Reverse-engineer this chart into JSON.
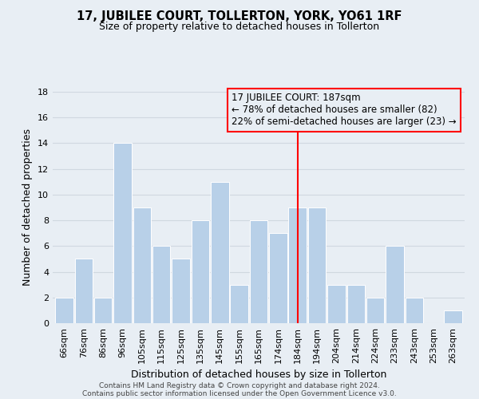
{
  "title": "17, JUBILEE COURT, TOLLERTON, YORK, YO61 1RF",
  "subtitle": "Size of property relative to detached houses in Tollerton",
  "xlabel": "Distribution of detached houses by size in Tollerton",
  "ylabel": "Number of detached properties",
  "footer_lines": [
    "Contains HM Land Registry data © Crown copyright and database right 2024.",
    "Contains public sector information licensed under the Open Government Licence v3.0."
  ],
  "bins": [
    "66sqm",
    "76sqm",
    "86sqm",
    "96sqm",
    "105sqm",
    "115sqm",
    "125sqm",
    "135sqm",
    "145sqm",
    "155sqm",
    "165sqm",
    "174sqm",
    "184sqm",
    "194sqm",
    "204sqm",
    "214sqm",
    "224sqm",
    "233sqm",
    "243sqm",
    "253sqm",
    "263sqm"
  ],
  "values": [
    2,
    5,
    2,
    14,
    9,
    6,
    5,
    8,
    11,
    3,
    8,
    7,
    9,
    9,
    3,
    3,
    2,
    6,
    2,
    0,
    1
  ],
  "bar_color": "#b8d0e8",
  "bar_edge_color": "#ffffff",
  "grid_color": "#d0d8e0",
  "background_color": "#e8eef4",
  "vline_color": "red",
  "vline_x": 12.5,
  "annotation_title": "17 JUBILEE COURT: 187sqm",
  "annotation_line1": "← 78% of detached houses are smaller (82)",
  "annotation_line2": "22% of semi-detached houses are larger (23) →",
  "annotation_border_color": "red",
  "ylim": [
    0,
    18
  ],
  "yticks": [
    0,
    2,
    4,
    6,
    8,
    10,
    12,
    14,
    16,
    18
  ],
  "title_fontsize": 10.5,
  "subtitle_fontsize": 9,
  "xlabel_fontsize": 9,
  "ylabel_fontsize": 9,
  "tick_fontsize": 8,
  "footer_fontsize": 6.5,
  "annotation_fontsize": 8.5
}
